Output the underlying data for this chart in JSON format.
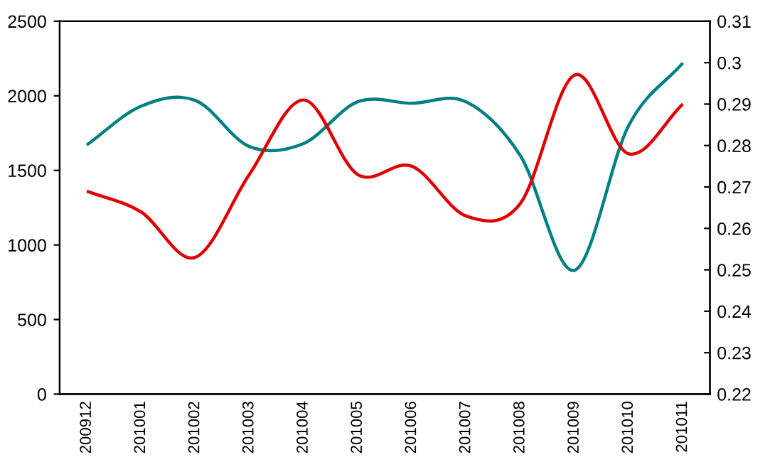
{
  "chart_data": {
    "type": "line",
    "categories": [
      "200912",
      "201001",
      "201002",
      "201003",
      "201004",
      "201005",
      "201006",
      "201007",
      "201008",
      "201009",
      "201010",
      "201011"
    ],
    "series": [
      {
        "color": "#008080",
        "values": [
          1670,
          1930,
          1970,
          1660,
          1680,
          1960,
          1950,
          1960,
          1600,
          830,
          1800,
          2220
        ]
      },
      {
        "color": "#e00000",
        "axis": "y2",
        "values": [
          0.269,
          0.264,
          0.253,
          0.273,
          0.291,
          0.273,
          0.275,
          0.263,
          0.266,
          0.297,
          0.278,
          0.29
        ]
      }
    ],
    "ylim": [
      0,
      2500
    ],
    "yticks": [
      0,
      500,
      1000,
      1500,
      2000,
      2500
    ],
    "y2lim": [
      0.22,
      0.31
    ],
    "y2ticks": [
      0.22,
      0.23,
      0.24,
      0.25,
      0.26,
      0.27,
      0.28,
      0.29,
      0.3,
      0.31
    ],
    "grid": false,
    "marker": "none",
    "line_style": "solid"
  }
}
